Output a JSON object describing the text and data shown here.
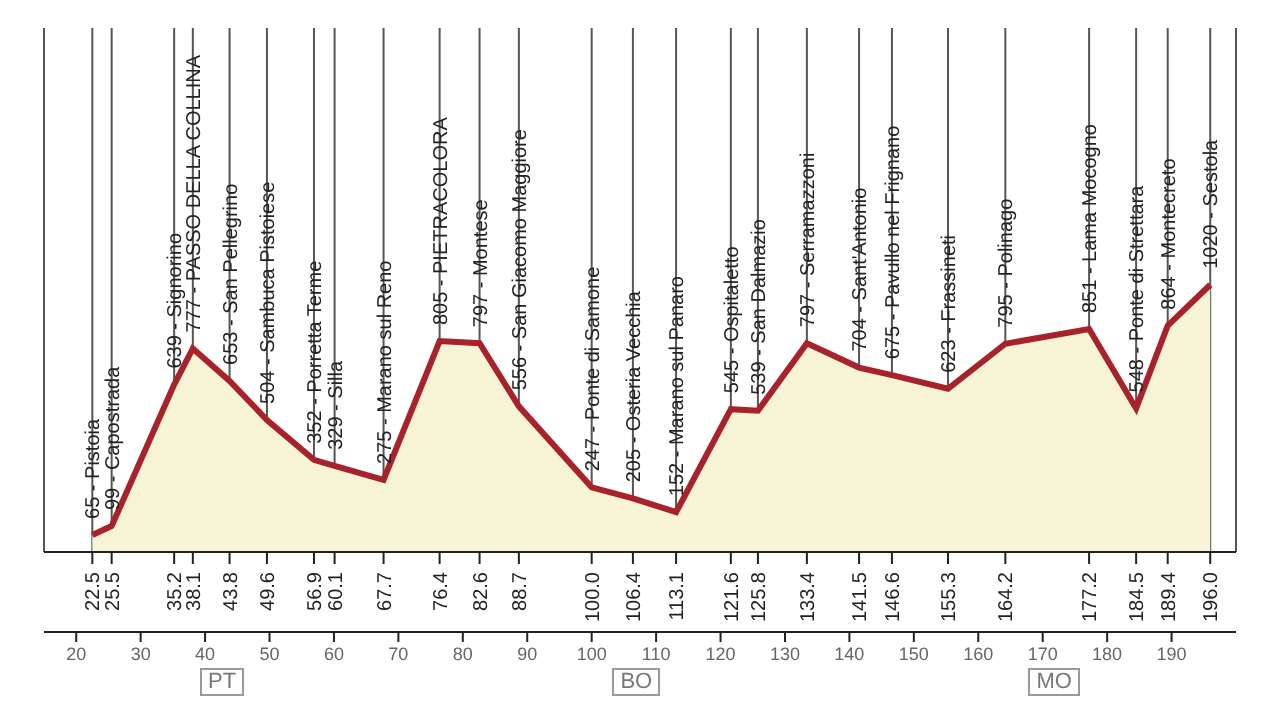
{
  "chart_data": {
    "type": "area",
    "xlim": [
      15,
      200
    ],
    "ylim": [
      0,
      2000
    ],
    "tick_labels": "x",
    "grid": "x",
    "x": [
      22.5,
      25.5,
      35.2,
      38.1,
      43.8,
      49.6,
      56.9,
      60.1,
      67.7,
      76.4,
      82.6,
      88.7,
      100,
      106.4,
      113.1,
      121.6,
      125.8,
      133.4,
      141.5,
      146.6,
      155.3,
      164.2,
      177.2,
      184.5,
      189.4,
      196
    ],
    "xticks": [
      22.5,
      25.5,
      35.2,
      38.1,
      43.8,
      49.6,
      56.9,
      60.1,
      67.7,
      76.4,
      82.6,
      88.7,
      {
        "value": 100,
        "label": "100.0"
      },
      106.4,
      113.1,
      121.6,
      125.8,
      133.4,
      141.5,
      146.6,
      155.3,
      164.2,
      177.2,
      184.5,
      189.4,
      {
        "value": 196,
        "label": "196.0"
      }
    ],
    "x2lim": [
      15,
      200
    ],
    "x2ticks": [
      20,
      30,
      40,
      50,
      60,
      70,
      80,
      90,
      100,
      110,
      120,
      130,
      140,
      150,
      160,
      170,
      180,
      190
    ],
    "series": [
      {
        "color": "#a8222c",
        "values": [
          65,
          99,
          639,
          777,
          653,
          504,
          352,
          329,
          275,
          805,
          797,
          556,
          247,
          205,
          152,
          545,
          539,
          797,
          704,
          675,
          623,
          795,
          851,
          548,
          864,
          1020
        ],
        "value_labels": [
          "65 - Pistoia",
          "99 - Capostrada",
          "639 - Signorino",
          "777 - PASSO DELLA COLLINA",
          "653 - San Pellegrino",
          "504 - Sambuca Pistoiese",
          "352 - Porretta Terme",
          "329 - Silla",
          "275 - Marano sul Reno",
          "805 - PIETRACOLORA",
          "797 - Montese",
          "556 - San Giacomo Maggiore",
          "247 - Ponte di Samone",
          "205 - Osteria Vecchia",
          "152 - Marano sul Panaro",
          "545 - Ospitaletto",
          "539 - San Dalmazio",
          "797 - Serramazzoni",
          "704 - Sant'Antonio",
          "675 - Pavullo nel Frignano",
          "623 - Frassineti",
          "795 - Polinago",
          "851 - Lama Mocogno",
          "548 - Ponte di Strettara",
          "864 - Montecreto",
          "1020 - Sestola"
        ]
      }
    ],
    "annotations": [
      "PT",
      "BO",
      "MO"
    ]
  }
}
